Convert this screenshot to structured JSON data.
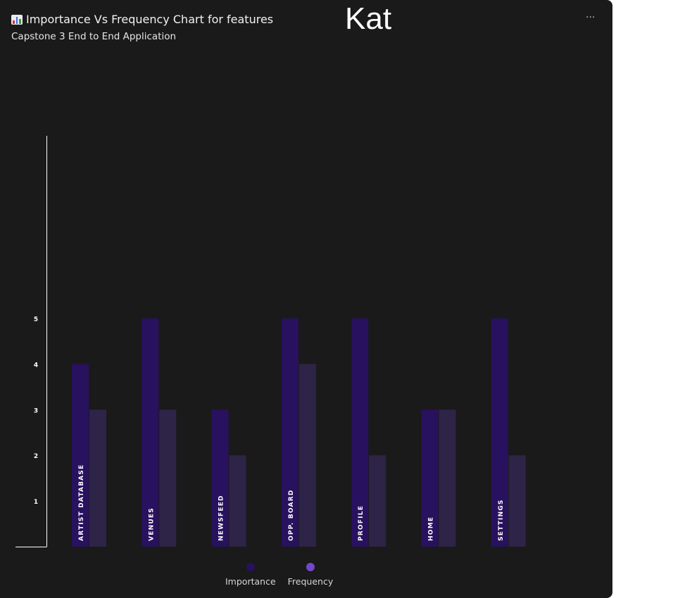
{
  "header": {
    "title": "Importance Vs Frequency Chart for features",
    "subtitle": "Capstone 3 End to End Application",
    "name": "Kat",
    "menu_label": "···",
    "title_icon": "bar-chart-emoji-icon"
  },
  "colors": {
    "background": "#1a1a1a",
    "importance": "#28115e",
    "frequency": "#2e2447",
    "legend_importance": "#28115e",
    "legend_frequency": "#6f49c8",
    "axis": "#ffffff"
  },
  "chart_data": {
    "type": "bar",
    "categories": [
      "ARTIST DATABASE",
      "VENUES",
      "NEWSFEED",
      "OPP. BOARD",
      "PROFILE",
      "HOME",
      "SETTINGS"
    ],
    "series": [
      {
        "name": "Importance",
        "values": [
          4,
          5,
          3,
          5,
          5,
          3,
          5
        ]
      },
      {
        "name": "Frequency",
        "values": [
          3,
          3,
          2,
          4,
          2,
          3,
          2
        ]
      }
    ],
    "yticks": [
      1,
      2,
      3,
      4,
      5
    ],
    "ylim": [
      0,
      9
    ],
    "legend": "bottom-center",
    "grid": false
  }
}
